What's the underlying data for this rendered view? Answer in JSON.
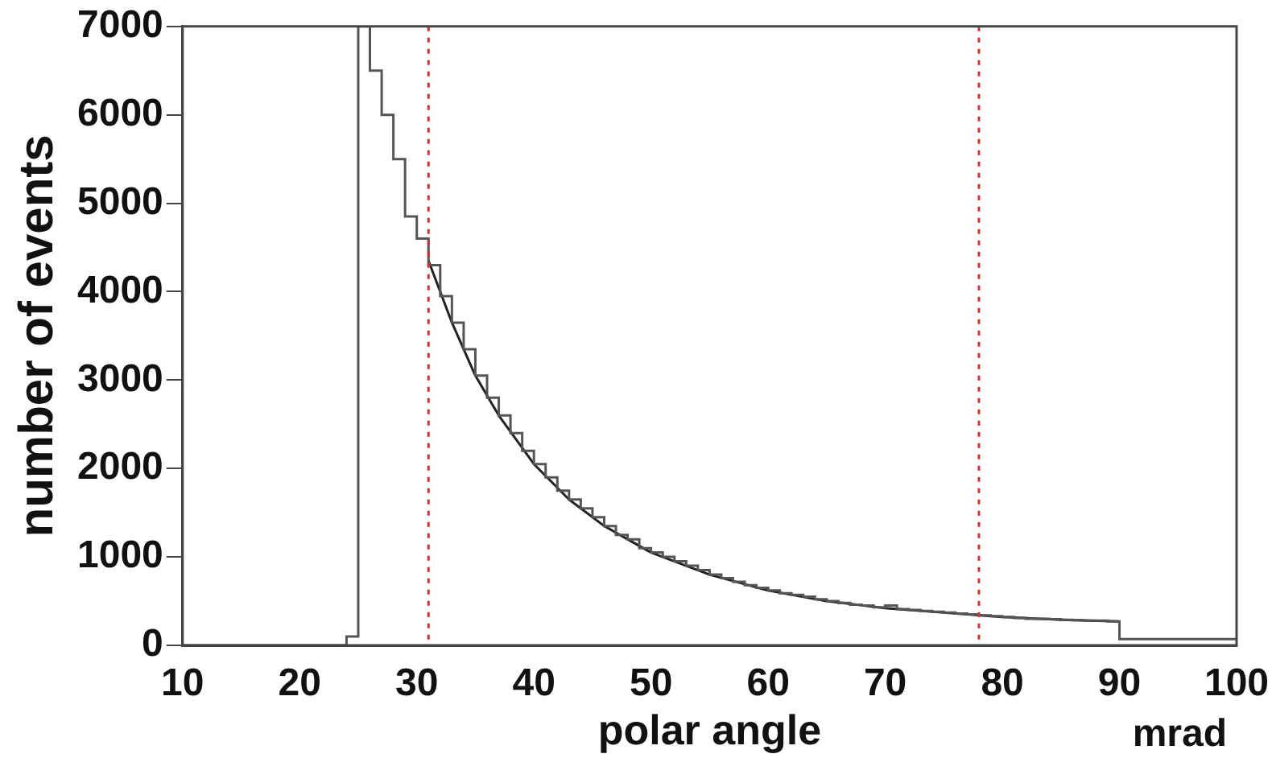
{
  "chart_data": {
    "type": "histogram",
    "xlabel": "polar angle",
    "ylabel": "number of events",
    "annotations": [
      "mrad"
    ],
    "xlim": [
      10,
      100
    ],
    "xticks": [
      10,
      20,
      30,
      40,
      50,
      60,
      70,
      80,
      90,
      100
    ],
    "ylim": [
      0,
      7000
    ],
    "yticks": [
      0,
      1000,
      2000,
      3000,
      4000,
      5000,
      6000,
      7000
    ],
    "grid": false,
    "legend": false,
    "series": [
      {
        "type": "histogram",
        "color": "#555555",
        "bins": [
          10,
          11,
          12,
          13,
          14,
          15,
          16,
          17,
          18,
          19,
          20,
          21,
          22,
          23,
          24,
          25,
          26,
          27,
          28,
          29,
          30,
          31,
          32,
          33,
          34,
          35,
          36,
          37,
          38,
          39,
          40,
          41,
          42,
          43,
          44,
          45,
          46,
          47,
          48,
          49,
          50,
          51,
          52,
          53,
          54,
          55,
          56,
          57,
          58,
          59,
          60,
          61,
          62,
          63,
          64,
          65,
          66,
          67,
          68,
          69,
          70,
          71,
          72,
          73,
          74,
          75,
          76,
          77,
          78,
          79,
          80,
          81,
          82,
          83,
          84,
          85,
          86,
          87,
          88,
          89,
          90,
          91,
          92,
          93,
          94,
          95,
          96,
          97,
          98,
          99,
          100
        ],
        "values": [
          0,
          0,
          0,
          0,
          0,
          0,
          0,
          0,
          0,
          0,
          0,
          0,
          0,
          0,
          100,
          7000,
          6500,
          6000,
          5500,
          4850,
          4600,
          4300,
          3950,
          3650,
          3350,
          3050,
          2800,
          2600,
          2400,
          2200,
          2050,
          1900,
          1750,
          1650,
          1550,
          1450,
          1350,
          1250,
          1200,
          1100,
          1050,
          1000,
          950,
          900,
          850,
          800,
          760,
          720,
          680,
          650,
          620,
          590,
          570,
          550,
          520,
          500,
          480,
          460,
          450,
          430,
          450,
          410,
          400,
          390,
          380,
          370,
          360,
          350,
          340,
          330,
          320,
          310,
          300,
          300,
          295,
          290,
          285,
          280,
          280,
          270,
          70,
          70,
          70,
          70,
          70,
          70,
          70,
          70,
          70,
          70
        ]
      },
      {
        "type": "line",
        "color": "#222222",
        "x": [
          31,
          33,
          35,
          37,
          40,
          43,
          46,
          50,
          55,
          60,
          65,
          70,
          75,
          80,
          85,
          90
        ],
        "values": [
          4350,
          3650,
          3050,
          2600,
          2050,
          1650,
          1350,
          1050,
          800,
          620,
          500,
          420,
          370,
          320,
          290,
          270
        ]
      }
    ],
    "ref_lines": [
      {
        "axis": "x",
        "value": 31,
        "color": "#cc3333",
        "line_style": "dotted"
      },
      {
        "axis": "x",
        "value": 78,
        "color": "#cc3333",
        "line_style": "dotted"
      }
    ]
  }
}
